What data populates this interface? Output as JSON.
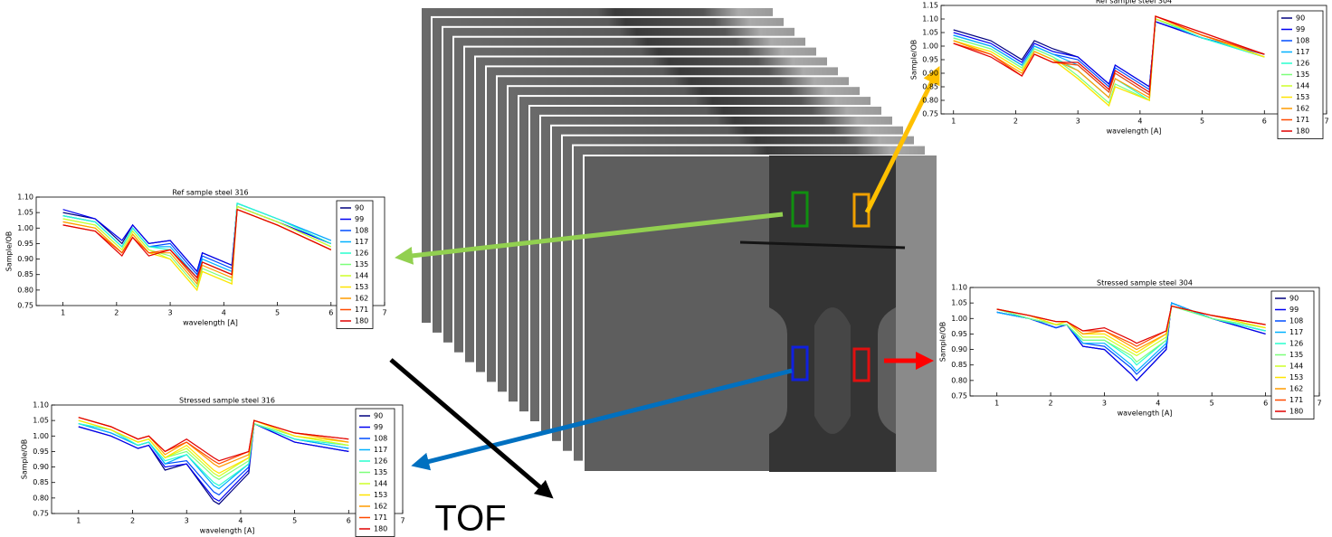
{
  "chart_data": [
    {
      "type": "line",
      "title": "Ref sample steel 304",
      "x_label": "wavelength [A]",
      "y_label": "Sample/OB",
      "x": [
        1,
        1.6,
        2.1,
        2.3,
        2.6,
        3.0,
        3.5,
        3.6,
        4.15,
        4.25,
        5,
        6
      ],
      "xlim": [
        0.8,
        7
      ],
      "ylim": [
        0.75,
        1.15
      ],
      "xticks": [
        1,
        2,
        3,
        4,
        5,
        6,
        7
      ],
      "yticks": [
        0.75,
        {
          "value": 0.8,
          "label": "0.80"
        },
        0.85,
        {
          "value": 0.9,
          "label": "0.90"
        },
        0.95,
        {
          "value": 1.0,
          "label": "1.00"
        },
        1.05,
        {
          "value": 1.1,
          "label": "1.10"
        },
        1.15
      ],
      "series": [
        {
          "name": "90",
          "color": "#00007f",
          "values": [
            1.06,
            1.02,
            0.95,
            1.02,
            0.99,
            0.96,
            0.86,
            0.93,
            0.85,
            1.09,
            1.03,
            0.97
          ]
        },
        {
          "name": "99",
          "color": "#0000f1",
          "values": [
            1.05,
            1.01,
            0.94,
            1.01,
            0.98,
            0.96,
            0.86,
            0.93,
            0.85,
            1.09,
            1.03,
            0.97
          ]
        },
        {
          "name": "108",
          "color": "#004dff",
          "values": [
            1.04,
            1.0,
            0.93,
            1.0,
            0.97,
            0.95,
            0.85,
            0.92,
            0.84,
            1.1,
            1.03,
            0.97
          ]
        },
        {
          "name": "117",
          "color": "#00b1ff",
          "values": [
            1.04,
            1.0,
            0.93,
            1.0,
            0.97,
            0.93,
            0.83,
            0.9,
            0.82,
            1.1,
            1.03,
            0.96
          ]
        },
        {
          "name": "126",
          "color": "#29ffce",
          "values": [
            1.03,
            0.99,
            0.92,
            0.99,
            0.96,
            0.91,
            0.81,
            0.88,
            0.8,
            1.1,
            1.03,
            0.96
          ]
        },
        {
          "name": "135",
          "color": "#7dff7a",
          "values": [
            1.03,
            0.99,
            0.92,
            0.99,
            0.96,
            0.89,
            0.79,
            0.86,
            0.8,
            1.1,
            1.04,
            0.96
          ]
        },
        {
          "name": "144",
          "color": "#ceff29",
          "values": [
            1.02,
            0.98,
            0.91,
            0.98,
            0.95,
            0.88,
            0.78,
            0.85,
            0.8,
            1.1,
            1.04,
            0.96
          ]
        },
        {
          "name": "153",
          "color": "#ffe400",
          "values": [
            1.02,
            0.98,
            0.91,
            0.98,
            0.95,
            0.88,
            0.78,
            0.85,
            0.8,
            1.11,
            1.04,
            0.96
          ]
        },
        {
          "name": "162",
          "color": "#ff9a00",
          "values": [
            1.02,
            0.97,
            0.9,
            0.98,
            0.95,
            0.91,
            0.81,
            0.88,
            0.81,
            1.11,
            1.04,
            0.97
          ]
        },
        {
          "name": "171",
          "color": "#ff4a00",
          "values": [
            1.01,
            0.97,
            0.89,
            0.97,
            0.94,
            0.93,
            0.83,
            0.9,
            0.82,
            1.11,
            1.04,
            0.97
          ]
        },
        {
          "name": "180",
          "color": "#e00000",
          "values": [
            1.01,
            0.96,
            0.89,
            0.97,
            0.94,
            0.94,
            0.84,
            0.91,
            0.83,
            1.11,
            1.05,
            0.97
          ]
        }
      ]
    },
    {
      "type": "line",
      "title": "Ref sample steel 316",
      "x_label": "wavelength [A]",
      "y_label": "Sample/OB",
      "x": [
        1,
        1.6,
        2.1,
        2.3,
        2.6,
        3.0,
        3.5,
        3.6,
        4.15,
        4.25,
        5,
        6
      ],
      "xlim": [
        0.5,
        7
      ],
      "ylim": [
        0.75,
        1.1
      ],
      "xticks": [
        1,
        2,
        3,
        4,
        5,
        6,
        7
      ],
      "yticks": [
        0.75,
        {
          "value": 0.8,
          "label": "0.80"
        },
        0.85,
        {
          "value": 0.9,
          "label": "0.90"
        },
        0.95,
        {
          "value": 1.0,
          "label": "1.00"
        },
        1.05,
        {
          "value": 1.1,
          "label": "1.10"
        }
      ],
      "series": [
        {
          "name": "90",
          "color": "#00007f",
          "values": [
            1.05,
            1.03,
            0.95,
            1.01,
            0.95,
            0.96,
            0.86,
            0.92,
            0.88,
            1.07,
            1.02,
            0.95
          ]
        },
        {
          "name": "99",
          "color": "#0000f1",
          "values": [
            1.06,
            1.03,
            0.96,
            1.01,
            0.95,
            0.96,
            0.86,
            0.92,
            0.88,
            1.07,
            1.02,
            0.95
          ]
        },
        {
          "name": "108",
          "color": "#004dff",
          "values": [
            1.04,
            1.02,
            0.94,
            1.0,
            0.94,
            0.95,
            0.85,
            0.91,
            0.87,
            1.08,
            1.03,
            0.96
          ]
        },
        {
          "name": "117",
          "color": "#00b1ff",
          "values": [
            1.04,
            1.02,
            0.94,
            1.0,
            0.94,
            0.94,
            0.84,
            0.9,
            0.86,
            1.08,
            1.03,
            0.96
          ]
        },
        {
          "name": "126",
          "color": "#29ffce",
          "values": [
            1.04,
            1.02,
            0.94,
            1.0,
            0.94,
            0.93,
            0.83,
            0.89,
            0.85,
            1.08,
            1.03,
            0.95
          ]
        },
        {
          "name": "135",
          "color": "#7dff7a",
          "values": [
            1.03,
            1.01,
            0.93,
            0.99,
            0.93,
            0.91,
            0.81,
            0.87,
            0.83,
            1.07,
            1.02,
            0.94
          ]
        },
        {
          "name": "144",
          "color": "#ceff29",
          "values": [
            1.03,
            1.01,
            0.93,
            0.99,
            0.93,
            0.9,
            0.8,
            0.86,
            0.82,
            1.07,
            1.02,
            0.94
          ]
        },
        {
          "name": "153",
          "color": "#ffe400",
          "values": [
            1.02,
            1.0,
            0.92,
            0.98,
            0.92,
            0.9,
            0.8,
            0.86,
            0.82,
            1.06,
            1.01,
            0.93
          ]
        },
        {
          "name": "162",
          "color": "#ff9a00",
          "values": [
            1.02,
            1.0,
            0.92,
            0.98,
            0.92,
            0.92,
            0.82,
            0.88,
            0.84,
            1.06,
            1.01,
            0.93
          ]
        },
        {
          "name": "171",
          "color": "#ff4a00",
          "values": [
            1.01,
            0.99,
            0.92,
            0.97,
            0.92,
            0.93,
            0.83,
            0.89,
            0.85,
            1.06,
            1.01,
            0.93
          ]
        },
        {
          "name": "180",
          "color": "#e00000",
          "values": [
            1.01,
            0.99,
            0.91,
            0.97,
            0.91,
            0.93,
            0.84,
            0.89,
            0.85,
            1.06,
            1.01,
            0.93
          ]
        }
      ]
    },
    {
      "type": "line",
      "title": "Stressed sample steel 316",
      "x_label": "wavelength [A]",
      "y_label": "Sample/OB",
      "x": [
        1,
        1.6,
        2.1,
        2.3,
        2.6,
        3.0,
        3.5,
        3.6,
        4.15,
        4.25,
        5,
        6
      ],
      "xlim": [
        0.5,
        7
      ],
      "ylim": [
        0.75,
        1.1
      ],
      "xticks": [
        1,
        2,
        3,
        4,
        5,
        6,
        7
      ],
      "yticks": [
        0.75,
        {
          "value": 0.8,
          "label": "0.80"
        },
        0.85,
        {
          "value": 0.9,
          "label": "0.90"
        },
        0.95,
        {
          "value": 1.0,
          "label": "1.00"
        },
        1.05,
        {
          "value": 1.1,
          "label": "1.10"
        }
      ],
      "series": [
        {
          "name": "90",
          "color": "#00007f",
          "values": [
            1.03,
            1.0,
            0.96,
            0.97,
            0.89,
            0.91,
            0.79,
            0.78,
            0.88,
            1.04,
            0.98,
            0.95
          ]
        },
        {
          "name": "99",
          "color": "#0000f1",
          "values": [
            1.03,
            1.0,
            0.96,
            0.97,
            0.9,
            0.91,
            0.8,
            0.79,
            0.89,
            1.04,
            0.98,
            0.95
          ]
        },
        {
          "name": "108",
          "color": "#004dff",
          "values": [
            1.04,
            1.01,
            0.97,
            0.98,
            0.91,
            0.92,
            0.82,
            0.81,
            0.9,
            1.04,
            0.99,
            0.96
          ]
        },
        {
          "name": "117",
          "color": "#00b1ff",
          "values": [
            1.04,
            1.01,
            0.97,
            0.98,
            0.91,
            0.94,
            0.84,
            0.83,
            0.91,
            1.04,
            0.99,
            0.96
          ]
        },
        {
          "name": "126",
          "color": "#29ffce",
          "values": [
            1.04,
            1.02,
            0.97,
            0.98,
            0.92,
            0.94,
            0.85,
            0.84,
            0.91,
            1.04,
            0.99,
            0.97
          ]
        },
        {
          "name": "135",
          "color": "#7dff7a",
          "values": [
            1.05,
            1.02,
            0.98,
            0.99,
            0.93,
            0.95,
            0.87,
            0.86,
            0.92,
            1.04,
            1.0,
            0.97
          ]
        },
        {
          "name": "144",
          "color": "#ceff29",
          "values": [
            1.05,
            1.02,
            0.98,
            0.99,
            0.93,
            0.96,
            0.88,
            0.87,
            0.93,
            1.05,
            1.0,
            0.97
          ]
        },
        {
          "name": "153",
          "color": "#ffe400",
          "values": [
            1.05,
            1.02,
            0.98,
            0.99,
            0.93,
            0.97,
            0.89,
            0.88,
            0.93,
            1.05,
            1.0,
            0.98
          ]
        },
        {
          "name": "162",
          "color": "#ff9a00",
          "values": [
            1.06,
            1.03,
            0.99,
            1.0,
            0.94,
            0.98,
            0.91,
            0.9,
            0.94,
            1.05,
            1.01,
            0.98
          ]
        },
        {
          "name": "171",
          "color": "#ff4a00",
          "values": [
            1.06,
            1.03,
            0.99,
            1.0,
            0.95,
            0.98,
            0.92,
            0.91,
            0.95,
            1.05,
            1.01,
            0.99
          ]
        },
        {
          "name": "180",
          "color": "#e00000",
          "values": [
            1.06,
            1.03,
            0.99,
            1.0,
            0.95,
            0.99,
            0.93,
            0.92,
            0.95,
            1.05,
            1.01,
            0.99
          ]
        }
      ]
    },
    {
      "type": "line",
      "title": "Stressed sample steel 304",
      "x_label": "wavelength [A]",
      "y_label": "Sample/OB",
      "x": [
        1,
        1.6,
        2.1,
        2.3,
        2.6,
        3.0,
        3.5,
        3.6,
        4.15,
        4.25,
        5,
        6
      ],
      "xlim": [
        0.5,
        7
      ],
      "ylim": [
        0.75,
        1.1
      ],
      "xticks": [
        1,
        2,
        3,
        4,
        5,
        6,
        7
      ],
      "yticks": [
        0.75,
        {
          "value": 0.8,
          "label": "0.80"
        },
        0.85,
        {
          "value": 0.9,
          "label": "0.90"
        },
        0.95,
        {
          "value": 1.0,
          "label": "1.00"
        },
        1.05,
        {
          "value": 1.1,
          "label": "1.10"
        }
      ],
      "series": [
        {
          "name": "90",
          "color": "#00007f",
          "values": [
            1.02,
            1.0,
            0.97,
            0.98,
            0.91,
            0.9,
            0.82,
            0.8,
            0.9,
            1.05,
            1.0,
            0.95
          ]
        },
        {
          "name": "99",
          "color": "#0000f1",
          "values": [
            1.02,
            1.0,
            0.97,
            0.98,
            0.91,
            0.9,
            0.82,
            0.8,
            0.9,
            1.05,
            1.0,
            0.95
          ]
        },
        {
          "name": "108",
          "color": "#004dff",
          "values": [
            1.02,
            1.0,
            0.97,
            0.98,
            0.92,
            0.91,
            0.84,
            0.82,
            0.91,
            1.05,
            1.0,
            0.96
          ]
        },
        {
          "name": "117",
          "color": "#00b1ff",
          "values": [
            1.02,
            1.0,
            0.98,
            0.98,
            0.92,
            0.92,
            0.85,
            0.83,
            0.92,
            1.05,
            1.0,
            0.96
          ]
        },
        {
          "name": "126",
          "color": "#29ffce",
          "values": [
            1.03,
            1.0,
            0.98,
            0.98,
            0.93,
            0.93,
            0.87,
            0.85,
            0.93,
            1.04,
            1.0,
            0.96
          ]
        },
        {
          "name": "135",
          "color": "#7dff7a",
          "values": [
            1.03,
            1.0,
            0.98,
            0.98,
            0.93,
            0.93,
            0.88,
            0.86,
            0.93,
            1.04,
            1.0,
            0.97
          ]
        },
        {
          "name": "144",
          "color": "#ceff29",
          "values": [
            1.03,
            1.01,
            0.98,
            0.99,
            0.94,
            0.94,
            0.89,
            0.88,
            0.94,
            1.04,
            1.01,
            0.97
          ]
        },
        {
          "name": "153",
          "color": "#ffe400",
          "values": [
            1.03,
            1.01,
            0.98,
            0.99,
            0.95,
            0.95,
            0.9,
            0.89,
            0.95,
            1.04,
            1.01,
            0.97
          ]
        },
        {
          "name": "162",
          "color": "#ff9a00",
          "values": [
            1.03,
            1.01,
            0.99,
            0.99,
            0.95,
            0.96,
            0.91,
            0.9,
            0.95,
            1.04,
            1.01,
            0.98
          ]
        },
        {
          "name": "171",
          "color": "#ff4a00",
          "values": [
            1.03,
            1.01,
            0.99,
            0.99,
            0.96,
            0.96,
            0.92,
            0.91,
            0.96,
            1.04,
            1.01,
            0.98
          ]
        },
        {
          "name": "180",
          "color": "#e00000",
          "values": [
            1.03,
            1.01,
            0.99,
            0.99,
            0.96,
            0.97,
            0.93,
            0.92,
            0.96,
            1.04,
            1.01,
            0.98
          ]
        }
      ]
    }
  ],
  "labels": {
    "tof": "TOF"
  }
}
